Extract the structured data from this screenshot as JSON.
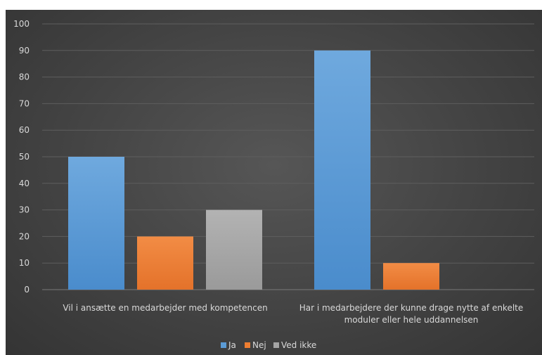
{
  "chart_data": {
    "type": "bar",
    "title": "",
    "xlabel": "",
    "ylabel": "",
    "categories": [
      [
        "Vil i ansætte en medarbejder med kompetencen"
      ],
      [
        "Har i medarbejdere der kunne drage nytte af enkelte",
        "moduler eller hele uddannelsen"
      ]
    ],
    "series": [
      {
        "name": "Ja",
        "color": "#5b9bd5",
        "values": [
          50,
          90
        ]
      },
      {
        "name": "Nej",
        "color": "#ed7d31",
        "values": [
          20,
          10
        ]
      },
      {
        "name": "Ved ikke",
        "color": "#a5a5a5",
        "values": [
          30,
          0
        ]
      }
    ],
    "ylim": [
      0,
      100
    ],
    "yticks": [
      0,
      10,
      20,
      30,
      40,
      50,
      60,
      70,
      80,
      90,
      100
    ],
    "grid": true,
    "legend_position": "bottom-center"
  }
}
